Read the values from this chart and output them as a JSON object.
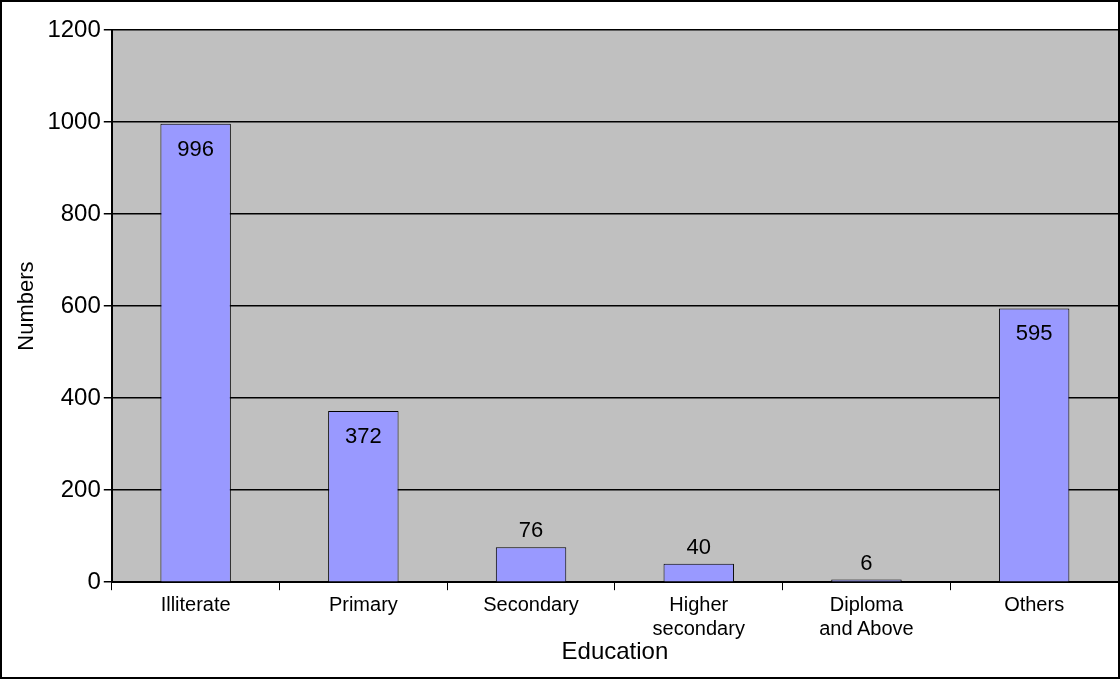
{
  "chart_data": {
    "type": "bar",
    "xlabel": "Education",
    "ylabel": "Numbers",
    "categories": [
      "Illiterate",
      "Primary",
      "Secondary",
      "Higher secondary",
      "Diploma and Above",
      "Others"
    ],
    "values": [
      996,
      372,
      76,
      40,
      6,
      595
    ],
    "color": "#9999ff",
    "ylim": [
      0,
      1200
    ],
    "yticks": [
      0,
      200,
      400,
      600,
      800,
      1000,
      1200
    ],
    "grid": "y",
    "legend": false,
    "data_labels": true
  }
}
